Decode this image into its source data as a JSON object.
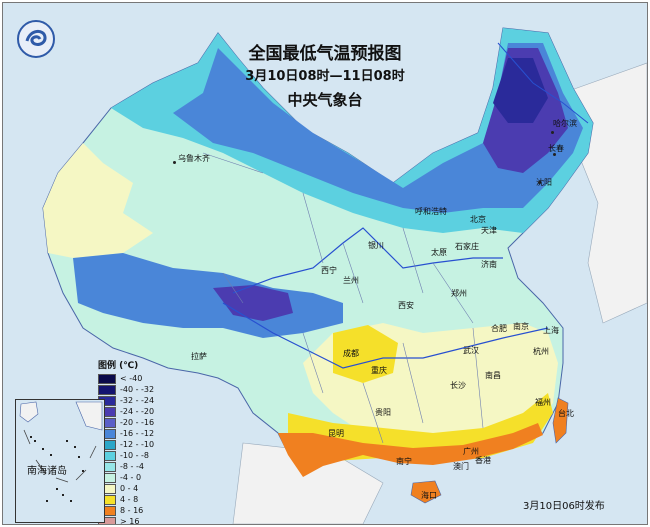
{
  "title": "全国最低气温预报图",
  "subtitle": "3月10日08时—11日08时",
  "agency": "中央气象台",
  "issued": "3月10日06时发布",
  "inset_label": "南海诸岛",
  "legend": {
    "title": "图例 (℃)",
    "items": [
      {
        "label": "< -40",
        "color": "#0a0a4a"
      },
      {
        "label": "-40 - -32",
        "color": "#141470"
      },
      {
        "label": "-32 - -24",
        "color": "#2a2a9a"
      },
      {
        "label": "-24 - -20",
        "color": "#4b3cb0"
      },
      {
        "label": "-20 - -16",
        "color": "#5a5fc8"
      },
      {
        "label": "-16 - -12",
        "color": "#4a86d8"
      },
      {
        "label": "-12 - -10",
        "color": "#2aa6c8"
      },
      {
        "label": "-10 - -8",
        "color": "#5cd0e0"
      },
      {
        "label": "-8 - -4",
        "color": "#96e6e8"
      },
      {
        "label": "-4 - 0",
        "color": "#c6f2e2"
      },
      {
        "label": "0 - 4",
        "color": "#f5f7c4"
      },
      {
        "label": "4 - 8",
        "color": "#f5e02a"
      },
      {
        "label": "8 - 16",
        "color": "#f08020"
      },
      {
        "label": "> 16",
        "color": "#d89a9a"
      }
    ]
  },
  "cities": [
    {
      "name": "哈尔滨"
    },
    {
      "name": "长春"
    },
    {
      "name": "沈阳"
    },
    {
      "name": "乌鲁木齐"
    },
    {
      "name": "呼和浩特"
    },
    {
      "name": "北京"
    },
    {
      "name": "天津"
    },
    {
      "name": "银川"
    },
    {
      "name": "太原"
    },
    {
      "name": "石家庄"
    },
    {
      "name": "济南"
    },
    {
      "name": "西宁"
    },
    {
      "name": "兰州"
    },
    {
      "name": "郑州"
    },
    {
      "name": "西安"
    },
    {
      "name": "合肥"
    },
    {
      "name": "南京"
    },
    {
      "name": "上海"
    },
    {
      "name": "拉萨"
    },
    {
      "name": "成都"
    },
    {
      "name": "武汉"
    },
    {
      "name": "杭州"
    },
    {
      "name": "重庆"
    },
    {
      "name": "长沙"
    },
    {
      "name": "南昌"
    },
    {
      "name": "福州"
    },
    {
      "name": "贵阳"
    },
    {
      "name": "台北"
    },
    {
      "name": "昆明"
    },
    {
      "name": "南宁"
    },
    {
      "name": "广州"
    },
    {
      "name": "香港"
    },
    {
      "name": "澳门"
    },
    {
      "name": "海口"
    }
  ]
}
